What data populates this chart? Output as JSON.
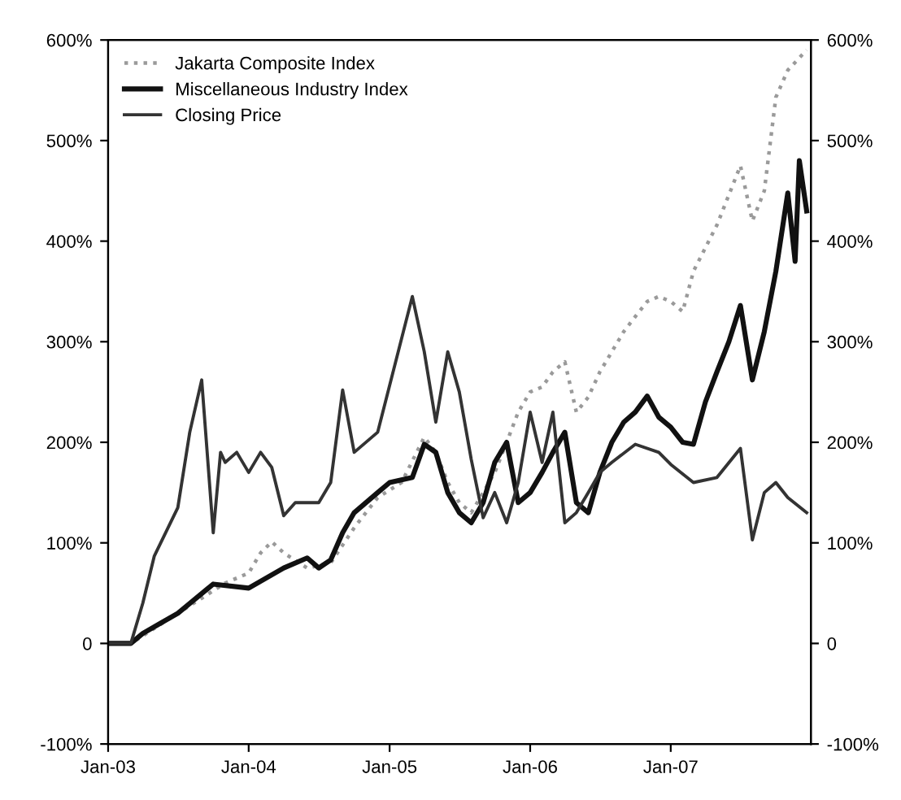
{
  "chart_data": {
    "type": "line",
    "series": [
      {
        "name": "Jakarta Composite Index",
        "color": "#9a9a9a",
        "line_style": "dotted",
        "x": [
          "2003-01",
          "2003-03",
          "2003-05",
          "2003-07",
          "2003-09",
          "2003-11",
          "2004-01",
          "2004-02",
          "2004-03",
          "2004-04",
          "2004-06",
          "2004-08",
          "2004-10",
          "2004-12",
          "2005-02",
          "2005-04",
          "2005-05",
          "2005-06",
          "2005-07",
          "2005-08",
          "2005-09",
          "2005-10",
          "2005-11",
          "2005-12",
          "2006-01",
          "2006-02",
          "2006-03",
          "2006-04",
          "2006-05",
          "2006-06",
          "2006-07",
          "2006-08",
          "2006-09",
          "2006-10",
          "2006-11",
          "2006-12",
          "2007-01",
          "2007-02",
          "2007-03",
          "2007-05",
          "2007-07",
          "2007-08",
          "2007-09",
          "2007-10",
          "2007-11",
          "2007-12-20"
        ],
        "values": [
          0,
          0,
          15,
          30,
          45,
          60,
          70,
          90,
          101,
          90,
          75,
          80,
          115,
          145,
          160,
          205,
          190,
          160,
          140,
          130,
          150,
          170,
          200,
          230,
          250,
          255,
          270,
          280,
          230,
          245,
          270,
          290,
          310,
          325,
          340,
          345,
          340,
          330,
          370,
          416,
          475,
          420,
          450,
          543,
          570,
          590
        ]
      },
      {
        "name": "Miscellaneous Industry Index",
        "color": "#111111",
        "line_style": "solid",
        "x": [
          "2003-01",
          "2003-03",
          "2003-04",
          "2003-07",
          "2003-10",
          "2004-01",
          "2004-04",
          "2004-06",
          "2004-07",
          "2004-08",
          "2004-09",
          "2004-10",
          "2004-12",
          "2005-01",
          "2005-03",
          "2005-04",
          "2005-05",
          "2005-06",
          "2005-07",
          "2005-08",
          "2005-09",
          "2005-10",
          "2005-11",
          "2005-12",
          "2006-01",
          "2006-02",
          "2006-03",
          "2006-04",
          "2006-05",
          "2006-06",
          "2006-07",
          "2006-08",
          "2006-09",
          "2006-10",
          "2006-11",
          "2006-12",
          "2007-01",
          "2007-02",
          "2007-03",
          "2007-04",
          "2007-05",
          "2007-06",
          "2007-07",
          "2007-08",
          "2007-09",
          "2007-10",
          "2007-11",
          "2007-11-20",
          "2007-12",
          "2007-12-20"
        ],
        "values": [
          0,
          0,
          10,
          30,
          59,
          55,
          75,
          85,
          75,
          83,
          110,
          130,
          150,
          160,
          165,
          198,
          190,
          150,
          130,
          120,
          140,
          180,
          200,
          140,
          150,
          170,
          190,
          210,
          140,
          130,
          170,
          200,
          220,
          230,
          246,
          225,
          215,
          200,
          198,
          240,
          270,
          300,
          336,
          262,
          310,
          370,
          448,
          380,
          480,
          430
        ]
      },
      {
        "name": "Closing Price",
        "color": "#333333",
        "line_style": "solid",
        "x": [
          "2003-01",
          "2003-03",
          "2003-04",
          "2003-05",
          "2003-07",
          "2003-08",
          "2003-09",
          "2003-10",
          "2003-10-20",
          "2003-11",
          "2003-12",
          "2004-01",
          "2004-02",
          "2004-03",
          "2004-04",
          "2004-05",
          "2004-07",
          "2004-08",
          "2004-09",
          "2004-10",
          "2004-12",
          "2005-03",
          "2005-04",
          "2005-05",
          "2005-06",
          "2005-07",
          "2005-08",
          "2005-09",
          "2005-10",
          "2005-11",
          "2005-12",
          "2006-01",
          "2006-02",
          "2006-03",
          "2006-04",
          "2006-05",
          "2006-06",
          "2006-07",
          "2006-08",
          "2006-10",
          "2006-12",
          "2007-01",
          "2007-03",
          "2007-05",
          "2007-07",
          "2007-08",
          "2007-09",
          "2007-10",
          "2007-11",
          "2007-12-20"
        ],
        "values": [
          0,
          0,
          40,
          87,
          135,
          210,
          262,
          110,
          190,
          180,
          190,
          170,
          190,
          175,
          127,
          140,
          140,
          160,
          252,
          190,
          210,
          345,
          290,
          220,
          290,
          250,
          183,
          125,
          150,
          120,
          160,
          230,
          180,
          230,
          120,
          130,
          150,
          170,
          180,
          198,
          190,
          178,
          160,
          165,
          194,
          103,
          150,
          160,
          145,
          130
        ]
      }
    ],
    "xlim": [
      "2003-01-01",
      "2007-12-31"
    ],
    "xticks": [
      {
        "value": "2003-01",
        "label": "Jan-03"
      },
      {
        "value": "2004-01",
        "label": "Jan-04"
      },
      {
        "value": "2005-01",
        "label": "Jan-05"
      },
      {
        "value": "2006-01",
        "label": "Jan-06"
      },
      {
        "value": "2007-01",
        "label": "Jan-07"
      }
    ],
    "ylim": [
      -100,
      600
    ],
    "yticks": [
      {
        "value": -100,
        "label": "-100%"
      },
      0,
      {
        "value": 100,
        "label": "100%"
      },
      {
        "value": 200,
        "label": "200%"
      },
      {
        "value": 300,
        "label": "300%"
      },
      {
        "value": 400,
        "label": "400%"
      },
      {
        "value": 500,
        "label": "500%"
      },
      {
        "value": 600,
        "label": "600%"
      }
    ],
    "y2lim": [
      -100,
      600
    ],
    "y2ticks": [
      {
        "value": -100,
        "label": "-100%"
      },
      0,
      {
        "value": 100,
        "label": "100%"
      },
      {
        "value": 200,
        "label": "200%"
      },
      {
        "value": 300,
        "label": "300%"
      },
      {
        "value": 400,
        "label": "400%"
      },
      {
        "value": 500,
        "label": "500%"
      },
      {
        "value": 600,
        "label": "600%"
      }
    ],
    "legend": "top left",
    "grid": false
  }
}
